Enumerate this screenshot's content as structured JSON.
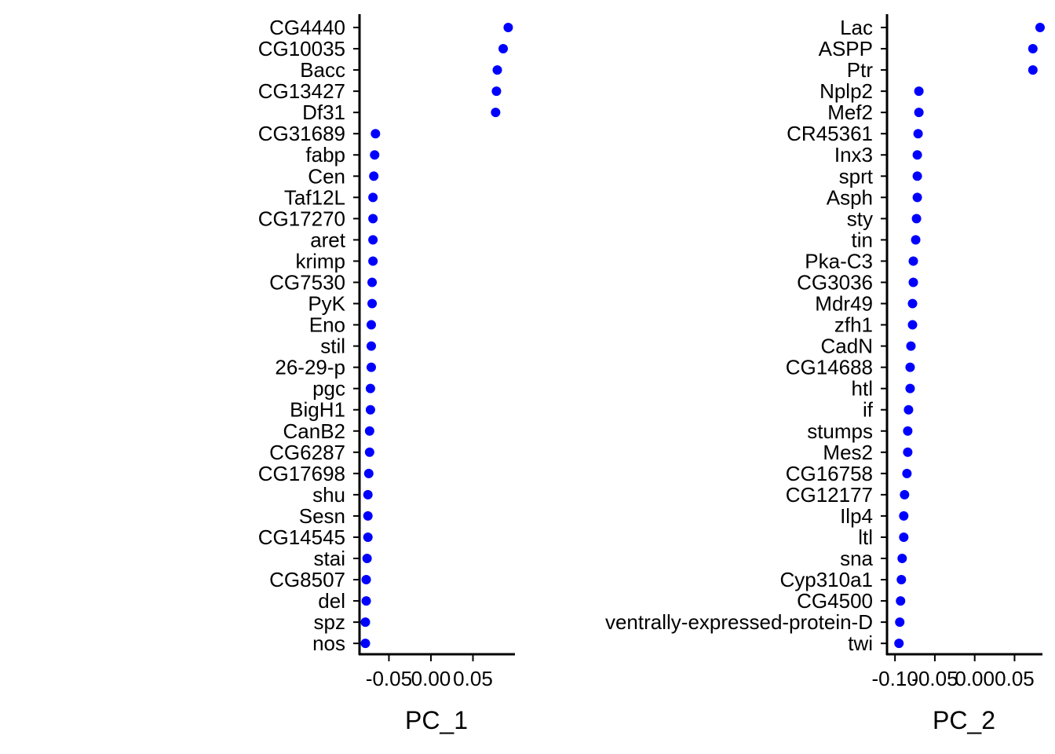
{
  "chart_data": [
    {
      "type": "scatter",
      "xlabel": "PC_1",
      "ylabel": "",
      "xlim": [
        -0.085,
        0.1
      ],
      "xticks": [
        -0.05,
        0.0,
        0.05
      ],
      "xtick_labels": [
        "-0.05",
        "0.00",
        "0.05"
      ],
      "grid": false,
      "legend": "none",
      "point_color": "#0000FF",
      "categories": [
        "CG4440",
        "CG10035",
        "Bacc",
        "CG13427",
        "Df31",
        "CG31689",
        "fabp",
        "Cen",
        "Taf12L",
        "CG17270",
        "aret",
        "krimp",
        "CG7530",
        "PyK",
        "Eno",
        "stil",
        "26-29-p",
        "pgc",
        "BigH1",
        "CanB2",
        "CG6287",
        "CG17698",
        "shu",
        "Sesn",
        "CG14545",
        "stai",
        "CG8507",
        "del",
        "spz",
        "nos"
      ],
      "values": [
        0.092,
        0.086,
        0.079,
        0.078,
        0.077,
        -0.066,
        -0.067,
        -0.068,
        -0.069,
        -0.069,
        -0.069,
        -0.069,
        -0.07,
        -0.07,
        -0.071,
        -0.071,
        -0.071,
        -0.072,
        -0.072,
        -0.073,
        -0.073,
        -0.074,
        -0.075,
        -0.075,
        -0.075,
        -0.076,
        -0.077,
        -0.077,
        -0.078,
        -0.078
      ]
    },
    {
      "type": "scatter",
      "xlabel": "PC_2",
      "ylabel": "",
      "xlim": [
        -0.11,
        0.085
      ],
      "xticks": [
        -0.1,
        -0.05,
        0.0,
        0.05
      ],
      "xtick_labels": [
        "-0.10",
        "-0.05",
        "0.00",
        "0.05"
      ],
      "grid": false,
      "legend": "none",
      "point_color": "#0000FF",
      "categories": [
        "Lac",
        "ASPP",
        "Ptr",
        "Nplp2",
        "Mef2",
        "CR45361",
        "Inx3",
        "sprt",
        "Asph",
        "sty",
        "tin",
        "Pka-C3",
        "CG3036",
        "Mdr49",
        "zfh1",
        "CadN",
        "CG14688",
        "htl",
        "if",
        "stumps",
        "Mes2",
        "CG16758",
        "CG12177",
        "Ilp4",
        "ltl",
        "sna",
        "Cyp310a1",
        "CG4500",
        "ventrally-expressed-protein-D",
        "twi"
      ],
      "values": [
        0.082,
        0.073,
        0.073,
        -0.07,
        -0.07,
        -0.071,
        -0.072,
        -0.072,
        -0.072,
        -0.073,
        -0.074,
        -0.077,
        -0.077,
        -0.078,
        -0.078,
        -0.08,
        -0.081,
        -0.081,
        -0.083,
        -0.084,
        -0.084,
        -0.085,
        -0.088,
        -0.089,
        -0.089,
        -0.091,
        -0.092,
        -0.093,
        -0.094,
        -0.095
      ]
    }
  ]
}
